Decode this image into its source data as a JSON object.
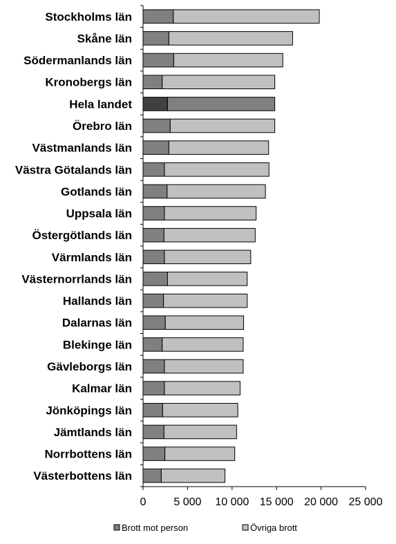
{
  "chart_data": {
    "type": "bar",
    "orientation": "horizontal",
    "stacked": true,
    "categories": [
      "Stockholms län",
      "Skåne län",
      "Södermanlands län",
      "Kronobergs län",
      "Hela landet",
      "Örebro län",
      "Västmanlands län",
      "Västra Götalands län",
      "Gotlands län",
      "Uppsala län",
      "Östergötlands  län",
      "Värmlands län",
      "Västernorrlands län",
      "Hallands län",
      "Dalarnas län",
      "Blekinge län",
      "Gävleborgs län",
      "Kalmar län",
      "Jönköpings län",
      "Jämtlands län",
      "Norrbottens län",
      "Västerbottens län"
    ],
    "series": [
      {
        "name": "Brott mot person",
        "color": "#808080",
        "values": [
          3400,
          2900,
          3450,
          2150,
          2750,
          3050,
          2900,
          2400,
          2700,
          2400,
          2350,
          2400,
          2750,
          2300,
          2500,
          2150,
          2400,
          2400,
          2200,
          2350,
          2450,
          2050
        ]
      },
      {
        "name": "Övriga brott",
        "color": "#c0c0c0",
        "values": [
          16400,
          13900,
          12250,
          12650,
          12050,
          11750,
          11200,
          11750,
          11050,
          10300,
          10250,
          9700,
          8950,
          9400,
          8800,
          9100,
          8850,
          8500,
          8450,
          8150,
          7850,
          7150
        ]
      }
    ],
    "highlight": {
      "category": "Hela landet",
      "colors": [
        "#404040",
        "#808080"
      ]
    },
    "xlim": [
      0,
      25000
    ],
    "xticks": [
      "0",
      "5 000",
      "10 000",
      "15 000",
      "20 000",
      "25 000"
    ],
    "xlabel": "",
    "ylabel": "",
    "grid": false,
    "legend_position": "bottom"
  }
}
